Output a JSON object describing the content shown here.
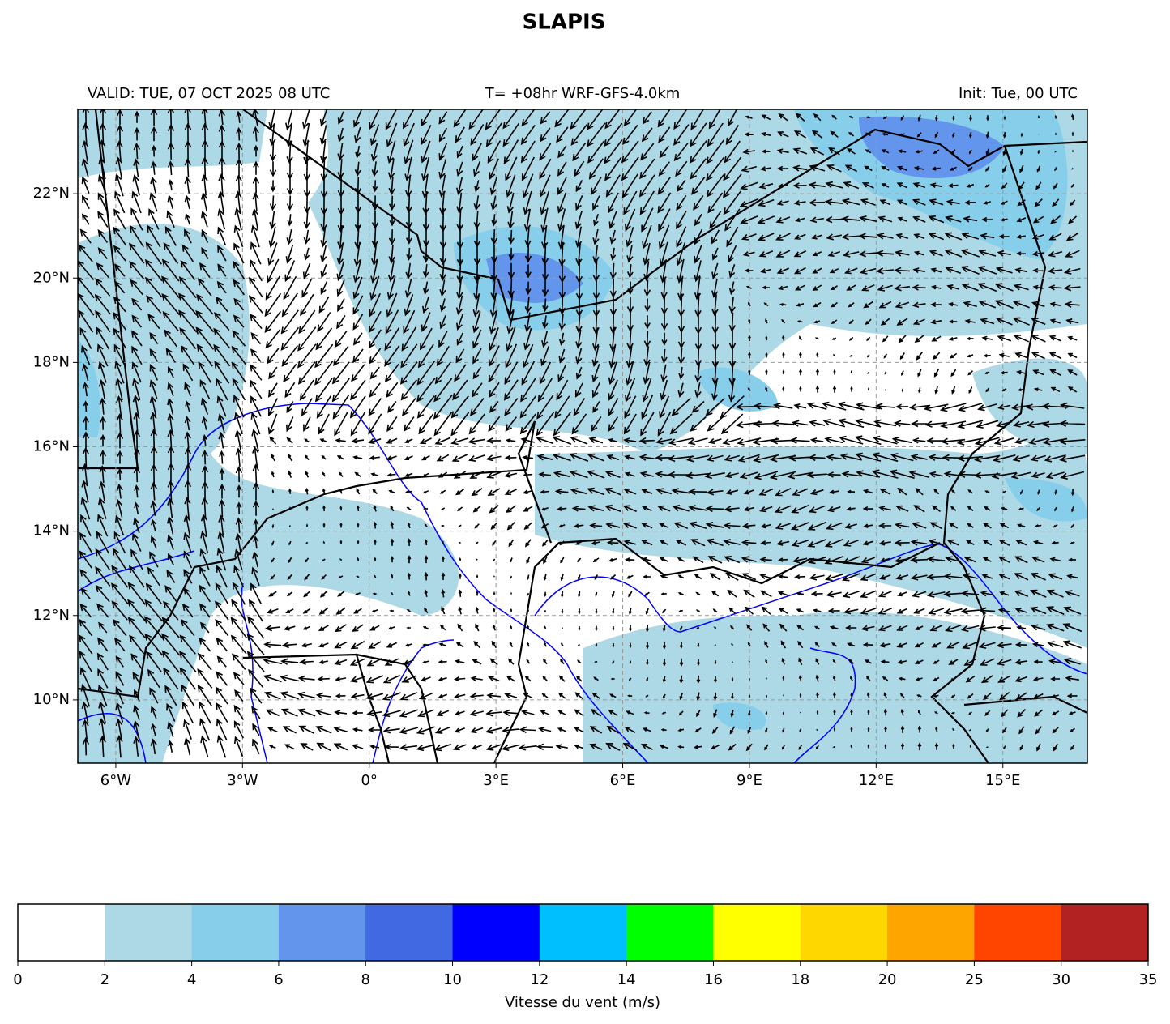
{
  "title": "SLAPIS",
  "header": {
    "valid": "VALID: TUE, 07 OCT 2025 08 UTC",
    "run": "T= +08hr WRF-GFS-4.0km",
    "init": "Init: Tue, 00 UTC"
  },
  "map": {
    "xlim": [
      -6.9,
      17
    ],
    "ylim": [
      8.5,
      24
    ],
    "grid": true,
    "xticks": [
      {
        "value": -6,
        "label": "6°W"
      },
      {
        "value": -3,
        "label": "3°W"
      },
      {
        "value": 0,
        "label": "0°"
      },
      {
        "value": 3,
        "label": "3°E"
      },
      {
        "value": 6,
        "label": "6°E"
      },
      {
        "value": 9,
        "label": "9°E"
      },
      {
        "value": 12,
        "label": "12°E"
      },
      {
        "value": 15,
        "label": "15°E"
      }
    ],
    "yticks": [
      {
        "value": 10,
        "label": "10°N"
      },
      {
        "value": 12,
        "label": "12°N"
      },
      {
        "value": 14,
        "label": "14°N"
      },
      {
        "value": 16,
        "label": "16°N"
      },
      {
        "value": 18,
        "label": "18°N"
      },
      {
        "value": 20,
        "label": "20°N"
      },
      {
        "value": 22,
        "label": "22°N"
      }
    ]
  },
  "colorbar": {
    "ticks": [
      0,
      2,
      4,
      6,
      8,
      10,
      12,
      14,
      16,
      18,
      20,
      25,
      30,
      35
    ],
    "colors": [
      "#ffffff",
      "#add8e6",
      "#87ceeb",
      "#6495ed",
      "#4169e1",
      "#0000ff",
      "#00bfff",
      "#00ff00",
      "#ffff00",
      "#ffd700",
      "#ffa500",
      "#ff4500",
      "#b22222"
    ],
    "label": "Vitesse du vent (m/s)"
  }
}
